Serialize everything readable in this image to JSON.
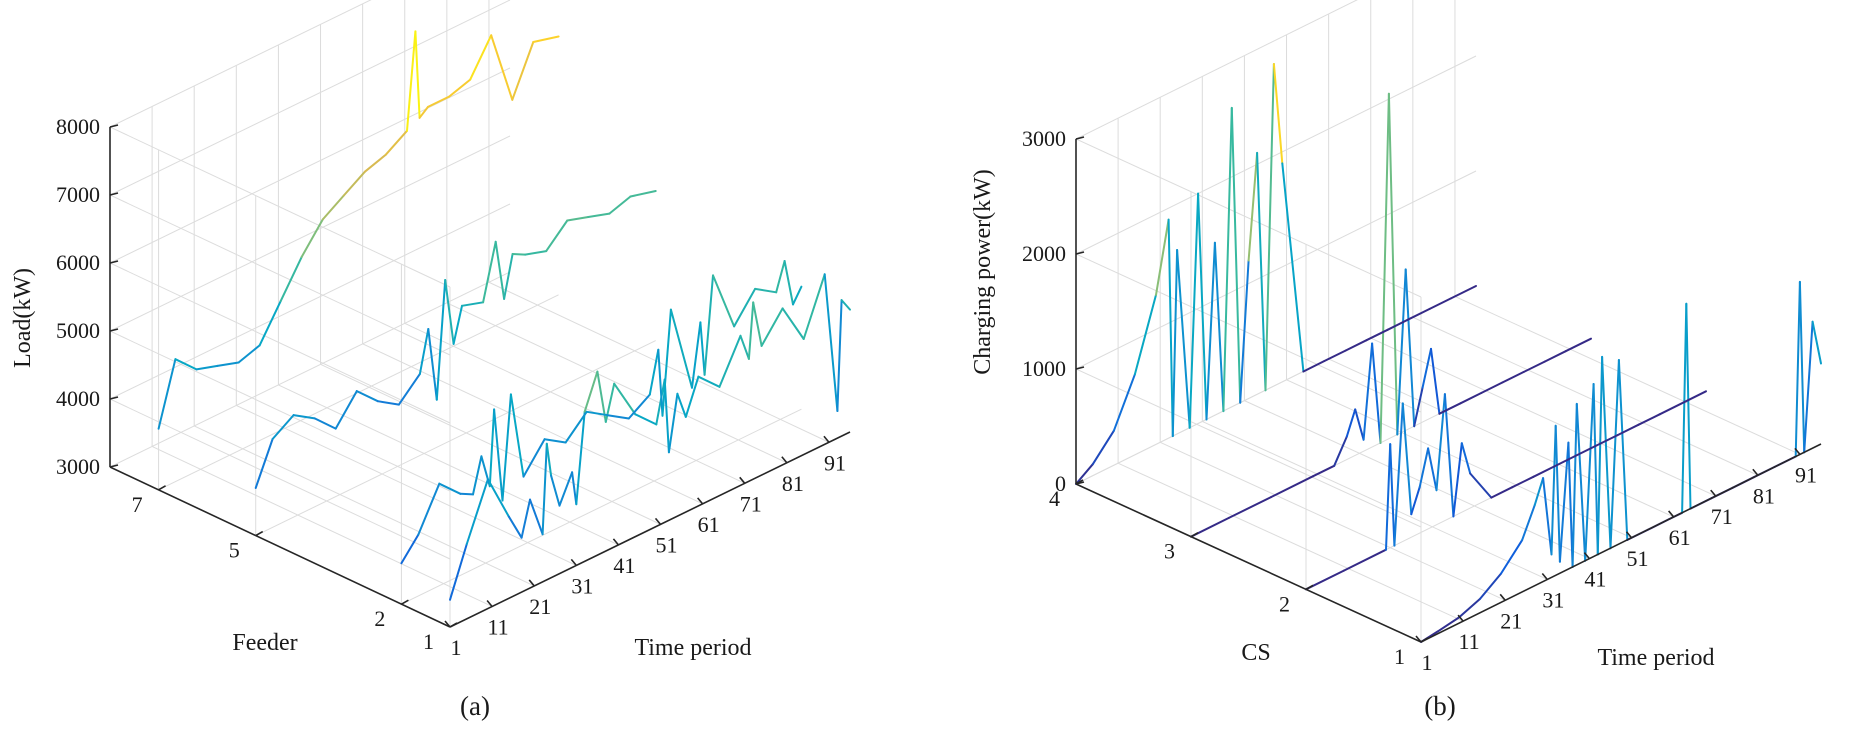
{
  "chart_data": [
    {
      "type": "line",
      "panel_label": "(a)",
      "ylabel": "Load(kW)",
      "xlabel": "Time period",
      "zlabel": "Feeder",
      "y_ticks": [
        "3000",
        "4000",
        "5000",
        "6000",
        "7000",
        "8000"
      ],
      "x_ticks": [
        "1",
        "11",
        "21",
        "31",
        "41",
        "51",
        "61",
        "71",
        "81",
        "91"
      ],
      "z_ticks": [
        "1",
        "2",
        "5",
        "7"
      ],
      "ylim": [
        3000,
        8000
      ],
      "xlim": [
        1,
        96
      ],
      "zlim": [
        1,
        8
      ],
      "grid": true,
      "series": [
        {
          "feeder": 1,
          "x": [
            1,
            5,
            10,
            15,
            18,
            20,
            23,
            24,
            25,
            27,
            30,
            31,
            33,
            36,
            38,
            40,
            45,
            50,
            52,
            53,
            55,
            57,
            60,
            65,
            70,
            72,
            73,
            75,
            80,
            85,
            90,
            93,
            94,
            96
          ],
          "y": [
            3400,
            4100,
            4900,
            4200,
            3800,
            4300,
            3700,
            5000,
            4500,
            4000,
            4400,
            3900,
            5200,
            5700,
            4900,
            5400,
            4800,
            4500,
            5100,
            4000,
            4800,
            4400,
            4900,
            4600,
            5200,
            4800,
            5600,
            4900,
            5300,
            4700,
            5500,
            3400,
            5000,
            4800
          ]
        },
        {
          "feeder": 2,
          "x": [
            1,
            5,
            10,
            15,
            18,
            20,
            22,
            23,
            25,
            27,
            30,
            35,
            40,
            45,
            50,
            55,
            60,
            62,
            63,
            65,
            70,
            72,
            73,
            75,
            80,
            85,
            90,
            92,
            94,
            96
          ],
          "y": [
            3600,
            3900,
            4500,
            4200,
            4100,
            4600,
            4100,
            5200,
            3800,
            5300,
            4000,
            4400,
            4200,
            4500,
            4300,
            4100,
            4300,
            4900,
            3900,
            5400,
            4100,
            5000,
            4200,
            5600,
            4700,
            5100,
            4900,
            5300,
            4600,
            4800
          ]
        },
        {
          "feeder": 5,
          "x": [
            1,
            5,
            10,
            15,
            20,
            25,
            30,
            35,
            40,
            42,
            44,
            46,
            48,
            50,
            55,
            58,
            60,
            62,
            65,
            70,
            75,
            80,
            85,
            90,
            96
          ],
          "y": [
            3700,
            4300,
            4500,
            4300,
            4000,
            4400,
            4100,
            3900,
            4200,
            4800,
            3700,
            5400,
            4400,
            4900,
            4800,
            5600,
            4700,
            5300,
            5200,
            5100,
            5400,
            5300,
            5200,
            5300,
            5200
          ]
        },
        {
          "feeder": 7,
          "x": [
            1,
            5,
            10,
            15,
            20,
            25,
            30,
            35,
            40,
            45,
            50,
            55,
            60,
            62,
            63,
            65,
            70,
            75,
            80,
            85,
            90,
            96
          ],
          "y": [
            3900,
            4800,
            4500,
            4400,
            4300,
            4400,
            4900,
            5400,
            5800,
            6000,
            6200,
            6300,
            6500,
            7900,
            6600,
            6700,
            6700,
            6800,
            7300,
            6200,
            6900,
            6800
          ]
        }
      ]
    },
    {
      "type": "line",
      "panel_label": "(b)",
      "ylabel": "Charging power(kW)",
      "xlabel": "Time period",
      "zlabel": "CS",
      "y_ticks": [
        "0",
        "1000",
        "2000",
        "3000"
      ],
      "x_ticks": [
        "1",
        "11",
        "21",
        "31",
        "41",
        "51",
        "61",
        "71",
        "81",
        "91"
      ],
      "z_ticks": [
        "1",
        "2",
        "3",
        "4"
      ],
      "ylim": [
        0,
        3000
      ],
      "xlim": [
        1,
        96
      ],
      "zlim": [
        1,
        4
      ],
      "grid": true,
      "series": [
        {
          "cs": 1,
          "x": [
            1,
            5,
            10,
            15,
            20,
            25,
            28,
            30,
            32,
            33,
            34,
            36,
            37,
            38,
            40,
            42,
            43,
            44,
            46,
            48,
            50,
            55,
            60,
            63,
            64,
            65,
            70,
            75,
            80,
            85,
            90,
            91,
            92,
            94,
            96
          ],
          "y": [
            0,
            20,
            50,
            120,
            250,
            450,
            700,
            900,
            200,
            1300,
            100,
            1100,
            0,
            1400,
            0,
            1500,
            0,
            1700,
            0,
            1600,
            0,
            0,
            0,
            0,
            1800,
            0,
            0,
            0,
            0,
            0,
            0,
            1500,
            0,
            1100,
            700
          ]
        },
        {
          "cs": 2,
          "x": [
            1,
            10,
            20,
            21,
            22,
            24,
            26,
            28,
            30,
            32,
            34,
            36,
            38,
            40,
            45,
            50,
            55,
            60,
            65,
            70,
            75,
            80,
            85,
            96
          ],
          "y": [
            0,
            0,
            0,
            900,
            0,
            1200,
            200,
            400,
            700,
            300,
            1100,
            0,
            600,
            300,
            0,
            0,
            0,
            0,
            0,
            0,
            0,
            0,
            0,
            0
          ]
        },
        {
          "cs": 3,
          "x": [
            1,
            10,
            20,
            30,
            35,
            38,
            40,
            42,
            44,
            46,
            48,
            50,
            52,
            54,
            56,
            58,
            60,
            65,
            70,
            75,
            80,
            85,
            90,
            96
          ],
          "y": [
            0,
            0,
            0,
            0,
            0,
            200,
            400,
            100,
            900,
            0,
            3000,
            0,
            1400,
            0,
            300,
            600,
            0,
            0,
            0,
            0,
            0,
            0,
            0,
            0
          ]
        },
        {
          "cs": 4,
          "x": [
            1,
            5,
            10,
            15,
            20,
            23,
            24,
            25,
            28,
            30,
            32,
            34,
            36,
            38,
            40,
            42,
            44,
            46,
            48,
            50,
            55,
            60,
            65,
            70,
            75,
            80,
            85,
            90,
            96
          ],
          "y": [
            0,
            100,
            300,
            700,
            1300,
            1900,
            0,
            1600,
            0,
            2000,
            0,
            1500,
            0,
            2600,
            0,
            1200,
            2100,
            0,
            2800,
            1900,
            0,
            0,
            0,
            0,
            0,
            0,
            0,
            0,
            0
          ]
        }
      ]
    }
  ]
}
